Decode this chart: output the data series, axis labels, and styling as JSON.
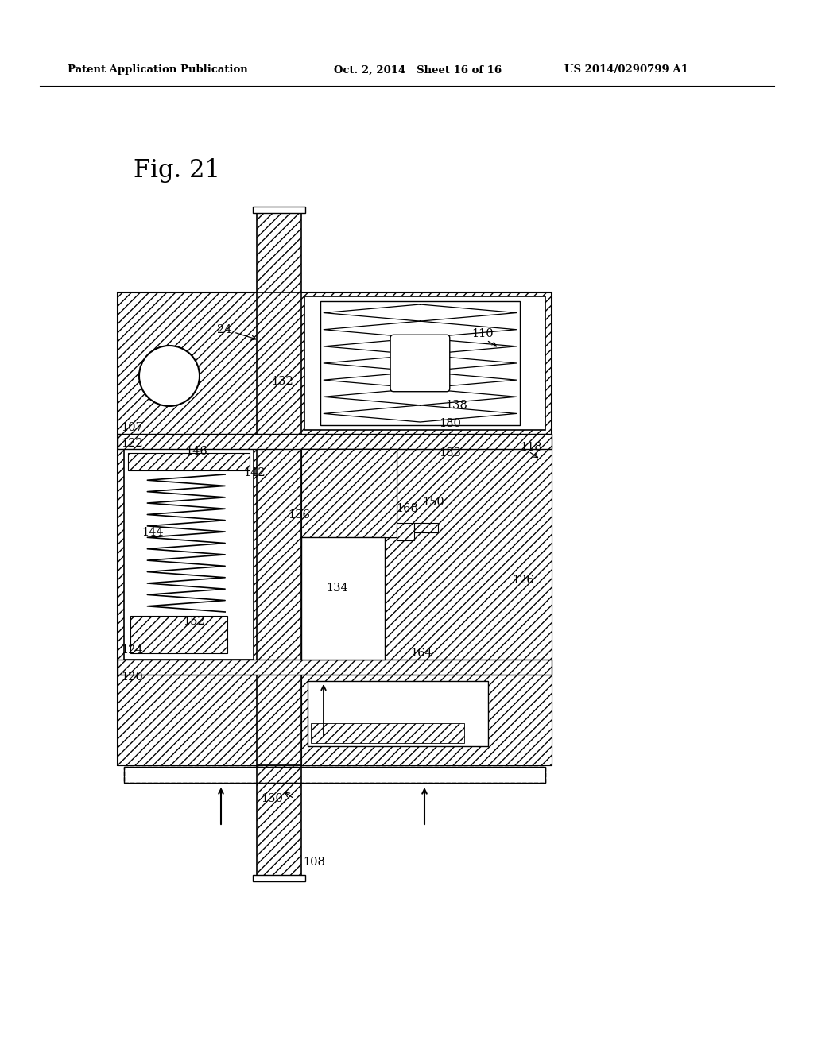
{
  "header_left": "Patent Application Publication",
  "header_mid": "Oct. 2, 2014   Sheet 16 of 16",
  "header_right": "US 2014/0290799 A1",
  "fig_title": "Fig. 21",
  "bg_color": "#ffffff"
}
